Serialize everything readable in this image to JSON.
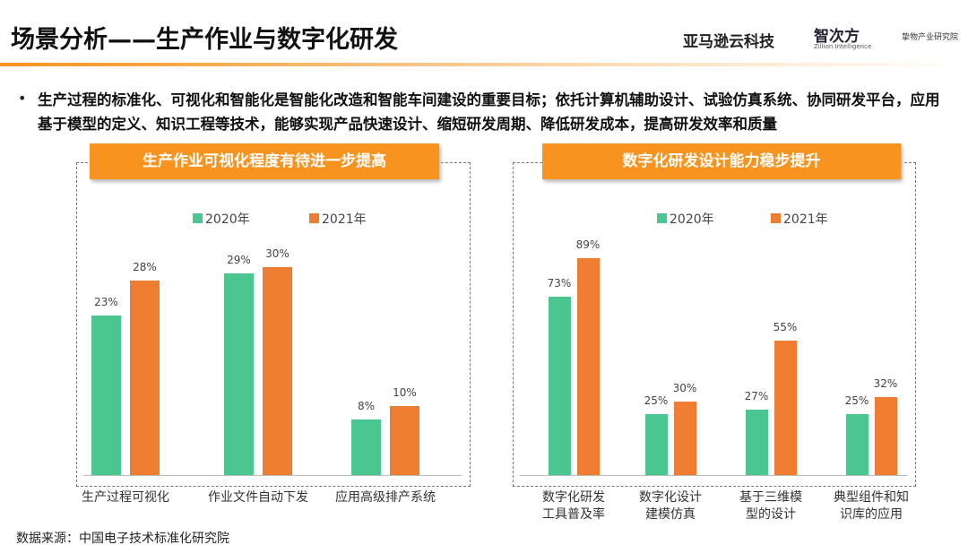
{
  "header": {
    "title": "场景分析——生产作业与数字化研发",
    "logos": [
      "亚马逊云科技",
      "智次方",
      "Zillion Intelligence",
      "挚物产业研究院"
    ]
  },
  "bullet": "生产过程的标准化、可视化和智能化是智能化改造和智能车间建设的重要目标；依托计算机辅助设计、试验仿真系统、协同研发平台，应用基于模型的定义、知识工程等技术，能够实现产品快速设计、缩短研发周期、降低研发成本，提高研发效率和质量",
  "source": "数据来源：中国电子技术标准化研究院",
  "chart_data": [
    {
      "type": "bar",
      "title": "生产作业可视化程度有待进一步提高",
      "categories": [
        "生产过程可视化",
        "作业文件自动下发",
        "应用高级排产系统"
      ],
      "series": [
        {
          "name": "2020年",
          "color": "#4cc690",
          "values": [
            23,
            29,
            8
          ],
          "value_labels": [
            "23%",
            "29%",
            "8%"
          ]
        },
        {
          "name": "2021年",
          "color": "#ee7d32",
          "values": [
            28,
            30,
            10
          ],
          "value_labels": [
            "28%",
            "30%",
            "10%"
          ]
        }
      ]
    },
    {
      "type": "bar",
      "title": "数字化研发设计能力稳步提升",
      "categories": [
        "数字化研发\n工具普及率",
        "数字化设计\n建模仿真",
        "基于三维模\n型的设计",
        "典型组件和知\n识库的应用"
      ],
      "series": [
        {
          "name": "2020年",
          "color": "#4cc690",
          "values": [
            73,
            25,
            27,
            25
          ],
          "value_labels": [
            "73%",
            "25%",
            "27%",
            "25%"
          ]
        },
        {
          "name": "2021年",
          "color": "#ee7d32",
          "values": [
            89,
            30,
            55,
            32
          ],
          "value_labels": [
            "89%",
            "30%",
            "55%",
            "32%"
          ]
        }
      ]
    }
  ]
}
